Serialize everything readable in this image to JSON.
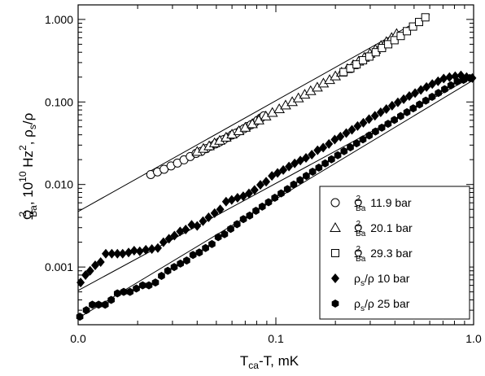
{
  "chart_data": {
    "type": "scatter",
    "title": "",
    "xlabel_main": "T",
    "xlabel_sub": "ca",
    "xlabel_rest": "-T, mK",
    "ylabel_omega": "Ω",
    "ylabel_sup": "2",
    "ylabel_sub": "Ba",
    "ylabel_mid": ", 10",
    "ylabel_sup10": "10",
    "ylabel_hz": " Hz",
    "ylabel_sup2": "2",
    "ylabel_rho": ", ρ",
    "ylabel_rho_sub": "s",
    "ylabel_rho_end": "/ρ",
    "x_scale": "log",
    "y_scale": "log",
    "xlim": [
      0.01,
      1.0
    ],
    "ylim": [
      0.0002,
      1.5
    ],
    "x_ticks": [
      {
        "value": 0.01,
        "label": "0.0"
      },
      {
        "value": 0.1,
        "label": "0.1"
      },
      {
        "value": 1.0,
        "label": "1.0"
      }
    ],
    "y_ticks": [
      {
        "value": 0.001,
        "label": "0.001"
      },
      {
        "value": 0.01,
        "label": "0.010"
      },
      {
        "value": 0.1,
        "label": "0.100"
      },
      {
        "value": 1.0,
        "label": "1.000"
      }
    ],
    "grid": false,
    "legend_position": "bottom-right",
    "series": [
      {
        "label_sym": "Ω",
        "label_sup": "2",
        "label_sub": "Ba",
        "label_text": "11.9 bar",
        "marker": "circle-open",
        "x": [
          0.0233,
          0.0252,
          0.0272,
          0.0295,
          0.0318,
          0.0343,
          0.0369,
          0.0395,
          0.042,
          0.0445,
          0.047,
          0.0495,
          0.052,
          0.0545,
          0.057,
          0.06,
          0.063,
          0.066,
          0.069,
          0.072,
          0.075,
          0.078,
          0.081,
          0.084,
          0.087
        ],
        "y": [
          0.0132,
          0.0142,
          0.0153,
          0.0168,
          0.0182,
          0.0199,
          0.0218,
          0.0238,
          0.0252,
          0.0272,
          0.0292,
          0.031,
          0.0329,
          0.035,
          0.0372,
          0.0398,
          0.042,
          0.0447,
          0.0474,
          0.0505,
          0.053,
          0.056,
          0.06,
          0.064,
          0.068
        ]
      },
      {
        "label_sym": "Ω",
        "label_sup": "2",
        "label_sub": "Ba",
        "label_text": "20.1 bar",
        "marker": "triangle-open",
        "x": [
          0.04,
          0.043,
          0.046,
          0.049,
          0.052,
          0.056,
          0.06,
          0.065,
          0.07,
          0.076,
          0.082,
          0.089,
          0.096,
          0.104,
          0.112,
          0.121,
          0.13,
          0.14,
          0.15,
          0.162,
          0.174,
          0.187,
          0.2,
          0.215,
          0.23,
          0.246,
          0.262,
          0.28,
          0.299,
          0.319,
          0.34,
          0.362,
          0.385,
          0.408
        ],
        "y": [
          0.025,
          0.0272,
          0.0292,
          0.0318,
          0.034,
          0.0372,
          0.0405,
          0.0445,
          0.049,
          0.054,
          0.06,
          0.067,
          0.074,
          0.082,
          0.091,
          0.1,
          0.111,
          0.123,
          0.136,
          0.15,
          0.168,
          0.185,
          0.205,
          0.228,
          0.252,
          0.28,
          0.31,
          0.345,
          0.385,
          0.43,
          0.48,
          0.535,
          0.6,
          0.67
        ]
      },
      {
        "label_sym": "Ω",
        "label_sup": "2",
        "label_sub": "Ba",
        "label_text": "29.3 bar",
        "marker": "square-open",
        "x": [
          0.22,
          0.238,
          0.256,
          0.276,
          0.297,
          0.32,
          0.344,
          0.37,
          0.398,
          0.428,
          0.46,
          0.494,
          0.53,
          0.57
        ],
        "y": [
          0.23,
          0.255,
          0.285,
          0.32,
          0.355,
          0.4,
          0.45,
          0.5,
          0.56,
          0.63,
          0.72,
          0.82,
          0.93,
          1.06
        ]
      },
      {
        "label_sym": "ρ",
        "label_sup": "",
        "label_sub": "s",
        "label_text": "/ρ 10 bar",
        "marker": "diamond-filled",
        "x": [
          0.0103,
          0.0109,
          0.0115,
          0.0122,
          0.013,
          0.0138,
          0.0148,
          0.0158,
          0.0168,
          0.018,
          0.0192,
          0.0205,
          0.022,
          0.0236,
          0.0253,
          0.027,
          0.0288,
          0.0307,
          0.0328,
          0.035,
          0.0375,
          0.04,
          0.0428,
          0.0457,
          0.049,
          0.0523,
          0.056,
          0.0598,
          0.064,
          0.0684,
          0.0731,
          0.078,
          0.0835,
          0.0893,
          0.0955,
          0.102,
          0.109,
          0.1165,
          0.1245,
          0.133,
          0.142,
          0.152,
          0.1625,
          0.1735,
          0.1855,
          0.1985,
          0.212,
          0.227,
          0.2425,
          0.259,
          0.277,
          0.296,
          0.317,
          0.339,
          0.362,
          0.387,
          0.414,
          0.443,
          0.473,
          0.506,
          0.541,
          0.578,
          0.618,
          0.661,
          0.706,
          0.755,
          0.807,
          0.863,
          0.922,
          0.985
        ],
        "y": [
          0.00065,
          0.0008,
          0.0009,
          0.00105,
          0.00115,
          0.00145,
          0.00145,
          0.00145,
          0.00145,
          0.0015,
          0.00158,
          0.00155,
          0.00162,
          0.00165,
          0.0017,
          0.002,
          0.0022,
          0.0024,
          0.0027,
          0.00285,
          0.00325,
          0.00315,
          0.0036,
          0.004,
          0.0045,
          0.005,
          0.0062,
          0.0065,
          0.0069,
          0.0072,
          0.0078,
          0.0086,
          0.0099,
          0.0108,
          0.0127,
          0.0138,
          0.015,
          0.0165,
          0.018,
          0.0195,
          0.021,
          0.023,
          0.026,
          0.028,
          0.031,
          0.035,
          0.038,
          0.042,
          0.046,
          0.051,
          0.056,
          0.062,
          0.068,
          0.075,
          0.082,
          0.09,
          0.099,
          0.108,
          0.118,
          0.128,
          0.14,
          0.152,
          0.165,
          0.178,
          0.192,
          0.2,
          0.205,
          0.21,
          0.2,
          0.195
        ]
      },
      {
        "label_sym": "ρ",
        "label_sup": "",
        "label_sub": "s",
        "label_text": "/ρ 25 bar",
        "marker": "hexagon-filled",
        "x": [
          0.0102,
          0.011,
          0.0118,
          0.0127,
          0.0137,
          0.0147,
          0.0158,
          0.017,
          0.0183,
          0.0197,
          0.0212,
          0.0228,
          0.0246,
          0.0264,
          0.0284,
          0.0306,
          0.0329,
          0.0354,
          0.0381,
          0.041,
          0.0441,
          0.0475,
          0.0511,
          0.055,
          0.0591,
          0.0636,
          0.0685,
          0.0737,
          0.0793,
          0.0853,
          0.0918,
          0.0988,
          0.1063,
          0.1144,
          0.1231,
          0.1325,
          0.1425,
          0.1534,
          0.165,
          0.1776,
          0.1911,
          0.2056,
          0.2212,
          0.238,
          0.2561,
          0.2756,
          0.2965,
          0.319,
          0.3432,
          0.3693,
          0.3974,
          0.4276,
          0.4601,
          0.495,
          0.5326,
          0.5731,
          0.6166,
          0.6634,
          0.7138,
          0.768,
          0.8264,
          0.8891,
          0.9567
        ],
        "y": [
          0.00025,
          0.0003,
          0.00035,
          0.00035,
          0.00035,
          0.0004,
          0.00048,
          0.0005,
          0.0005,
          0.00055,
          0.0006,
          0.0006,
          0.00065,
          0.00078,
          0.0009,
          0.001,
          0.0011,
          0.0012,
          0.0014,
          0.0015,
          0.0017,
          0.0019,
          0.0023,
          0.0025,
          0.0029,
          0.0033,
          0.0038,
          0.0042,
          0.0048,
          0.0054,
          0.0061,
          0.0069,
          0.0078,
          0.0088,
          0.01,
          0.0113,
          0.0127,
          0.0143,
          0.016,
          0.018,
          0.0202,
          0.0226,
          0.0253,
          0.0282,
          0.0315,
          0.0352,
          0.0392,
          0.0438,
          0.0488,
          0.0544,
          0.0606,
          0.0675,
          0.0752,
          0.0837,
          0.0932,
          0.1037,
          0.1154,
          0.1284,
          0.1428,
          0.1588,
          0.1765,
          0.185,
          0.195
        ]
      }
    ],
    "fit_lines": [
      {
        "x": [
          0.01,
          0.6
        ],
        "y": [
          0.0047,
          1.15
        ]
      },
      {
        "x": [
          0.01,
          1.0
        ],
        "y": [
          0.00052,
          0.205
        ]
      },
      {
        "x": [
          0.01,
          1.0
        ],
        "y": [
          0.00024,
          0.185
        ]
      }
    ]
  }
}
